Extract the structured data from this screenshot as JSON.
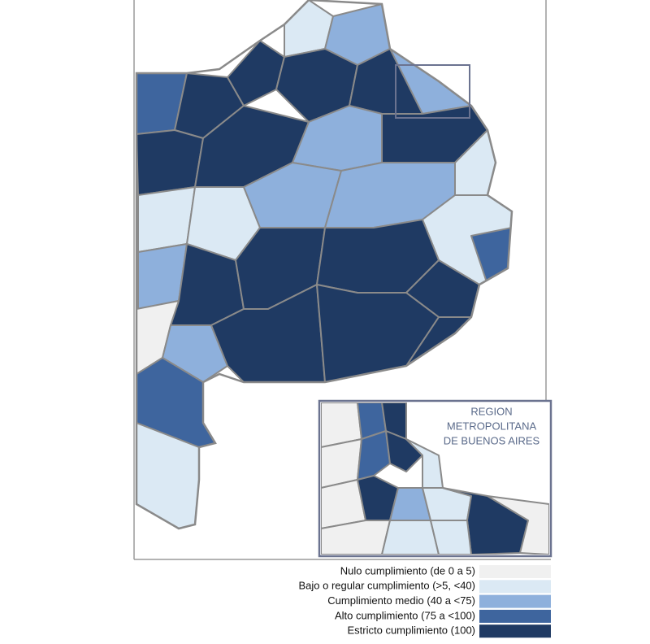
{
  "map": {
    "inset_title": [
      "REGION",
      "METROPOLITANA",
      "DE BUENOS AIRES"
    ],
    "legend": [
      {
        "label": "Nulo cumplimiento (de 0 a 5)",
        "color": "#f0f0f0"
      },
      {
        "label": "Bajo o regular cumplimiento (>5, <40)",
        "color": "#dbe9f4"
      },
      {
        "label": "Cumplimiento medio (40 a <75)",
        "color": "#8eb0dc"
      },
      {
        "label": "Alto cumplimiento (75 a <100)",
        "color": "#3e659e"
      },
      {
        "label": "Estricto cumplimiento (100)",
        "color": "#1f3a63"
      }
    ]
  }
}
